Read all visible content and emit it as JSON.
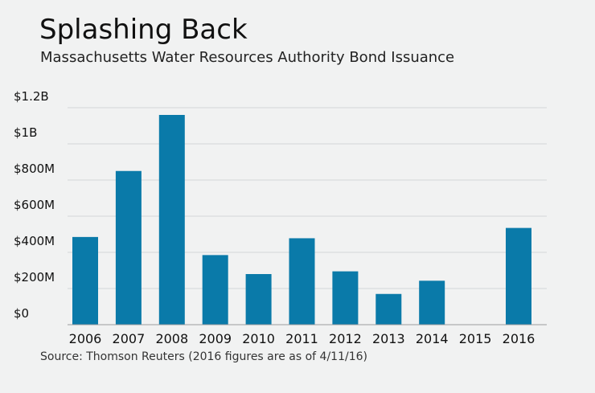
{
  "title": "Splashing Back",
  "subtitle": "Massachusetts Water Resources Authority Bond Issuance",
  "source": "Source: Thomson Reuters (2016 figures are as of 4/11/16)",
  "colors": {
    "bar": "#0a7aa9",
    "grid": "#d4d6d8",
    "axis": "#9a9c9e",
    "background": "#f1f2f2"
  },
  "chart_data": {
    "type": "bar",
    "categories": [
      "2006",
      "2007",
      "2008",
      "2009",
      "2010",
      "2011",
      "2012",
      "2013",
      "2014",
      "2015",
      "2016"
    ],
    "values": [
      485,
      850,
      1160,
      385,
      280,
      478,
      295,
      170,
      243,
      0,
      535
    ],
    "units": "$M",
    "ylim": [
      0,
      1200
    ],
    "yticks": [
      0,
      200,
      400,
      600,
      800,
      1000,
      1200
    ],
    "ytick_labels": [
      "$0",
      "$200M",
      "$400M",
      "$600M",
      "$800M",
      "$1B",
      "$1.2B"
    ],
    "grid": true,
    "legend": "none"
  }
}
